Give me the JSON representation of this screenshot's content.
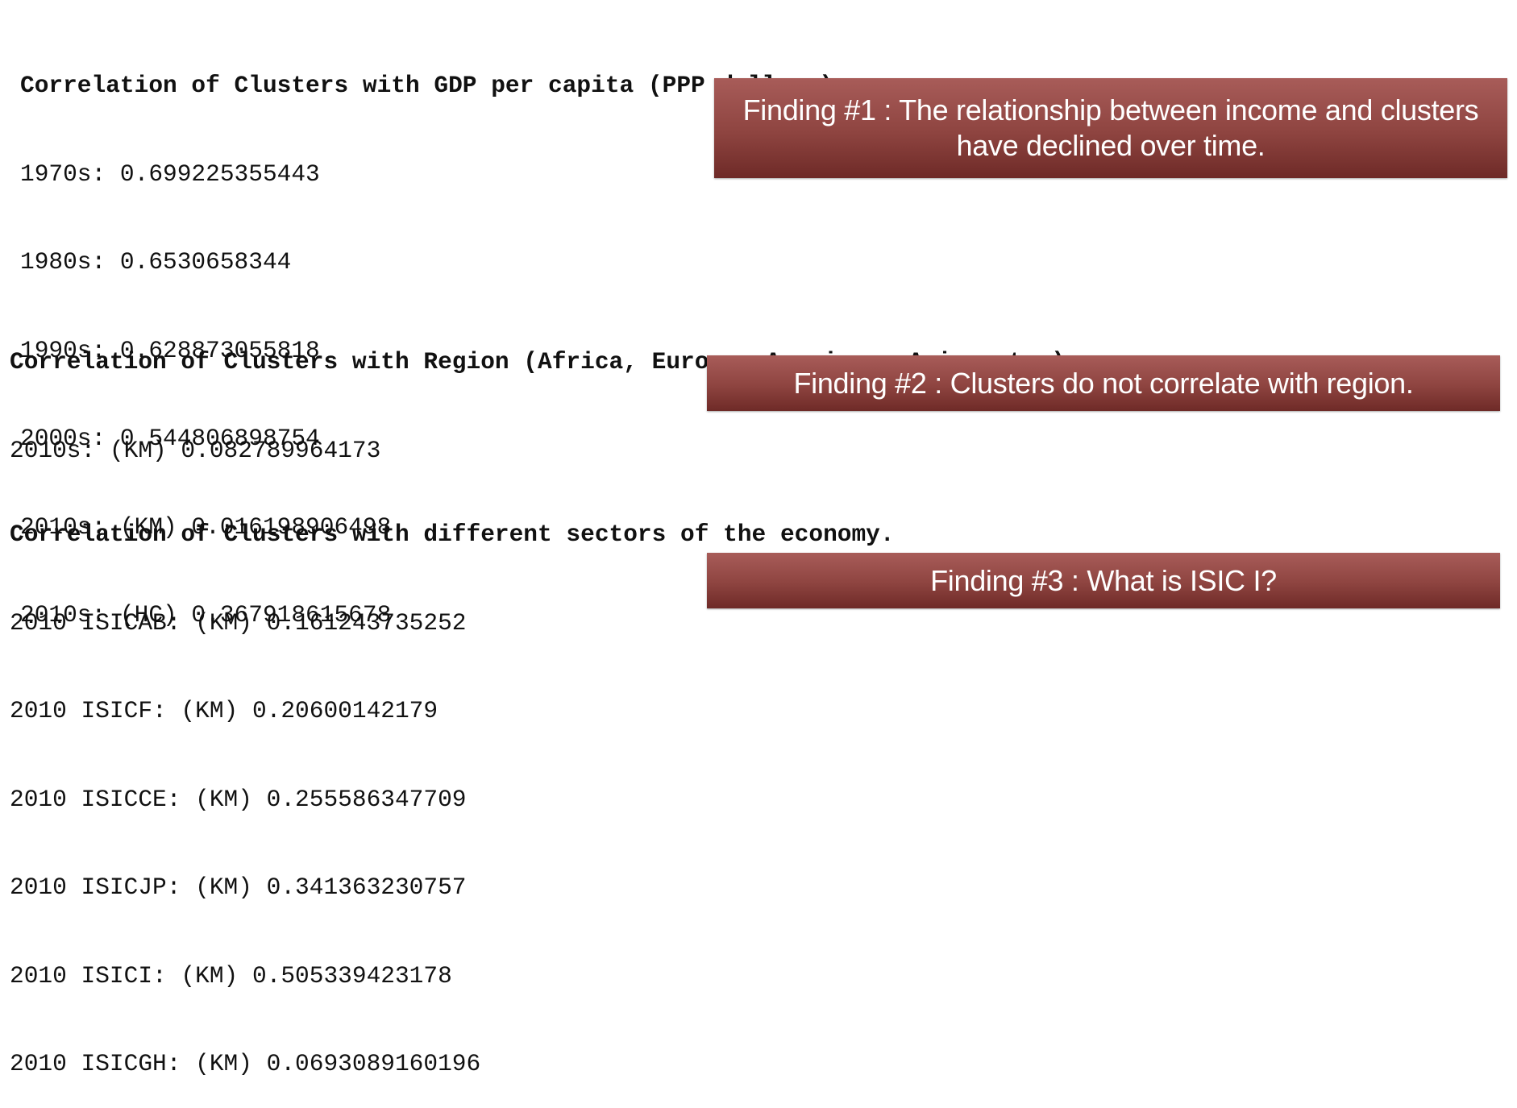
{
  "gdp_section": {
    "heading": "Correlation of Clusters with GDP per capita (PPP dollars)",
    "lines": [
      "1970s: 0.699225355443",
      "1980s: 0.6530658344",
      "1990s: 0.628873055818",
      "2000s: 0.544806898754",
      "2010s: (KM) 0.016198906498",
      "2010s: (HC) 0.367918615678"
    ]
  },
  "region_section": {
    "heading": "Correlation of Clusters with Region (Africa, Europe, Americas, Asia, etc.)",
    "lines": [
      "2010s: (KM) 0.082789964173"
    ]
  },
  "sectors_section": {
    "heading": "Correlation of Clusters with different sectors of the economy.",
    "lines": [
      "2010 ISICAB: (KM) 0.161243735252",
      "2010 ISICF: (KM) 0.20600142179",
      "2010 ISICCE: (KM) 0.255586347709",
      "2010 ISICJP: (KM) 0.341363230757",
      "2010 ISICI: (KM) 0.505339423178",
      "2010 ISICGH: (KM) 0.0693089160196"
    ]
  },
  "findings": [
    {
      "text": "Finding #1 : The relationship between income and clusters have declined over time."
    },
    {
      "text": "Finding #2 : Clusters do not correlate with region."
    },
    {
      "text": "Finding #3 : What is ISIC I?"
    }
  ],
  "colors": {
    "finding_background": "#8e4440",
    "finding_text": "#ffffff",
    "body_text": "#111111"
  }
}
